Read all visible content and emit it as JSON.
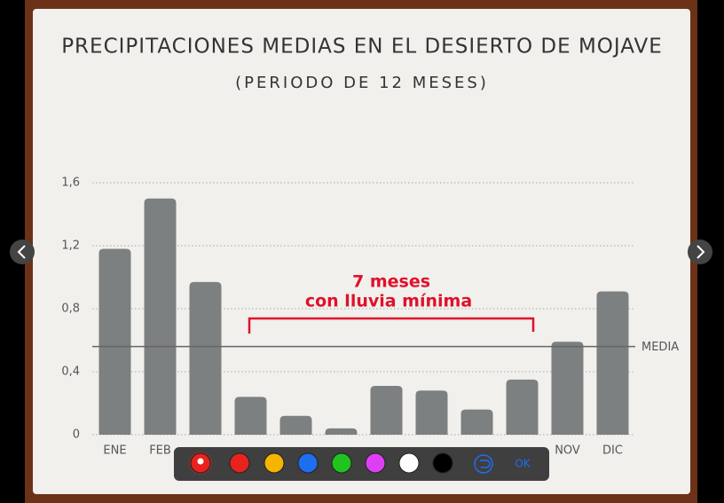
{
  "chart_data": {
    "type": "bar",
    "title": "PRECIPITACIONES MEDIAS EN EL DESIERTO DE MOJAVE",
    "subtitle": "(PERIODO DE 12 MESES)",
    "categories": [
      "ENE",
      "FEB",
      null,
      null,
      null,
      null,
      null,
      null,
      null,
      null,
      "NOV",
      "DIC"
    ],
    "values": [
      1.18,
      1.5,
      0.97,
      0.24,
      0.12,
      0.04,
      0.31,
      0.28,
      0.16,
      0.35,
      0.59,
      0.91
    ],
    "color": "#7d8080",
    "ylim": [
      0,
      1.6
    ],
    "yticks": [
      0,
      {
        "value": 0.4,
        "label": "0,4"
      },
      {
        "value": 0.8,
        "label": "0,8"
      },
      {
        "value": 1.2,
        "label": "1,2"
      },
      {
        "value": 1.6,
        "label": "1,6"
      }
    ],
    "grid": true,
    "reference_line": {
      "value": 0.56,
      "label": "MEDIA"
    },
    "annotations": [
      "7 meses",
      "con lluvia mínima"
    ],
    "annotation_color": "#e0102a"
  },
  "toolbar": {
    "colors": [
      "#e8231d",
      "#e8231d",
      "#f5b400",
      "#1e6ff0",
      "#1fc41f",
      "#dd3ff5",
      "#ffffff",
      "#000000"
    ],
    "selected": 0,
    "confirm": "OK"
  }
}
